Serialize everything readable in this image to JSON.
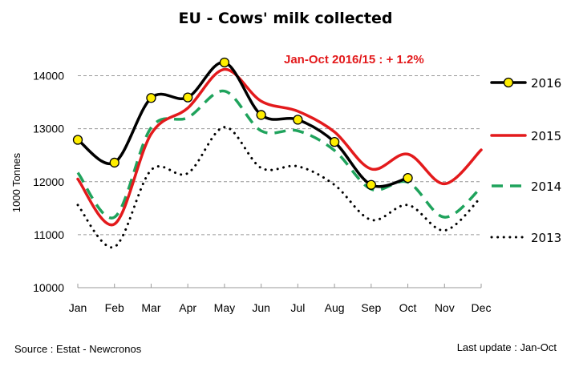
{
  "chart_data": {
    "type": "line",
    "title": "EU - Cows' milk collected",
    "annotation": "Jan-Oct 2016/15 :  + 1.2%",
    "annotation_color": "#e31a1c",
    "xlabel": "",
    "ylabel": "1000 Tonnes",
    "ylim": [
      10000,
      14000
    ],
    "yticks": [
      "10000",
      "11000",
      "12000",
      "13000",
      "14000"
    ],
    "grid": true,
    "legend_position": "right",
    "categories": [
      "Jan",
      "Feb",
      "Mar",
      "Apr",
      "May",
      "Jun",
      "Jul",
      "Aug",
      "Sep",
      "Oct",
      "Nov",
      "Dec"
    ],
    "series": [
      {
        "name": "2016",
        "color": "#000000",
        "style": "solid-marker",
        "marker_color": "#ffee00",
        "values": [
          12790,
          12360,
          13580,
          13590,
          14250,
          13260,
          13170,
          12750,
          11940,
          12070,
          null,
          null
        ]
      },
      {
        "name": "2015",
        "color": "#e31a1c",
        "style": "solid",
        "values": [
          12050,
          11200,
          12900,
          13390,
          14120,
          13520,
          13330,
          12940,
          12240,
          12520,
          11960,
          12600
        ]
      },
      {
        "name": "2014",
        "color": "#1fa35c",
        "style": "dashed",
        "values": [
          12170,
          11330,
          13020,
          13210,
          13710,
          12960,
          12960,
          12590,
          11860,
          11990,
          11330,
          11890
        ]
      },
      {
        "name": "2013",
        "color": "#000000",
        "style": "dotted",
        "values": [
          11560,
          10770,
          12220,
          12160,
          13030,
          12260,
          12290,
          11940,
          11280,
          11560,
          11080,
          11710
        ]
      }
    ]
  },
  "footer": {
    "source": "Source : Estat - Newcronos",
    "last_update": "Last update : Jan-Oct"
  }
}
